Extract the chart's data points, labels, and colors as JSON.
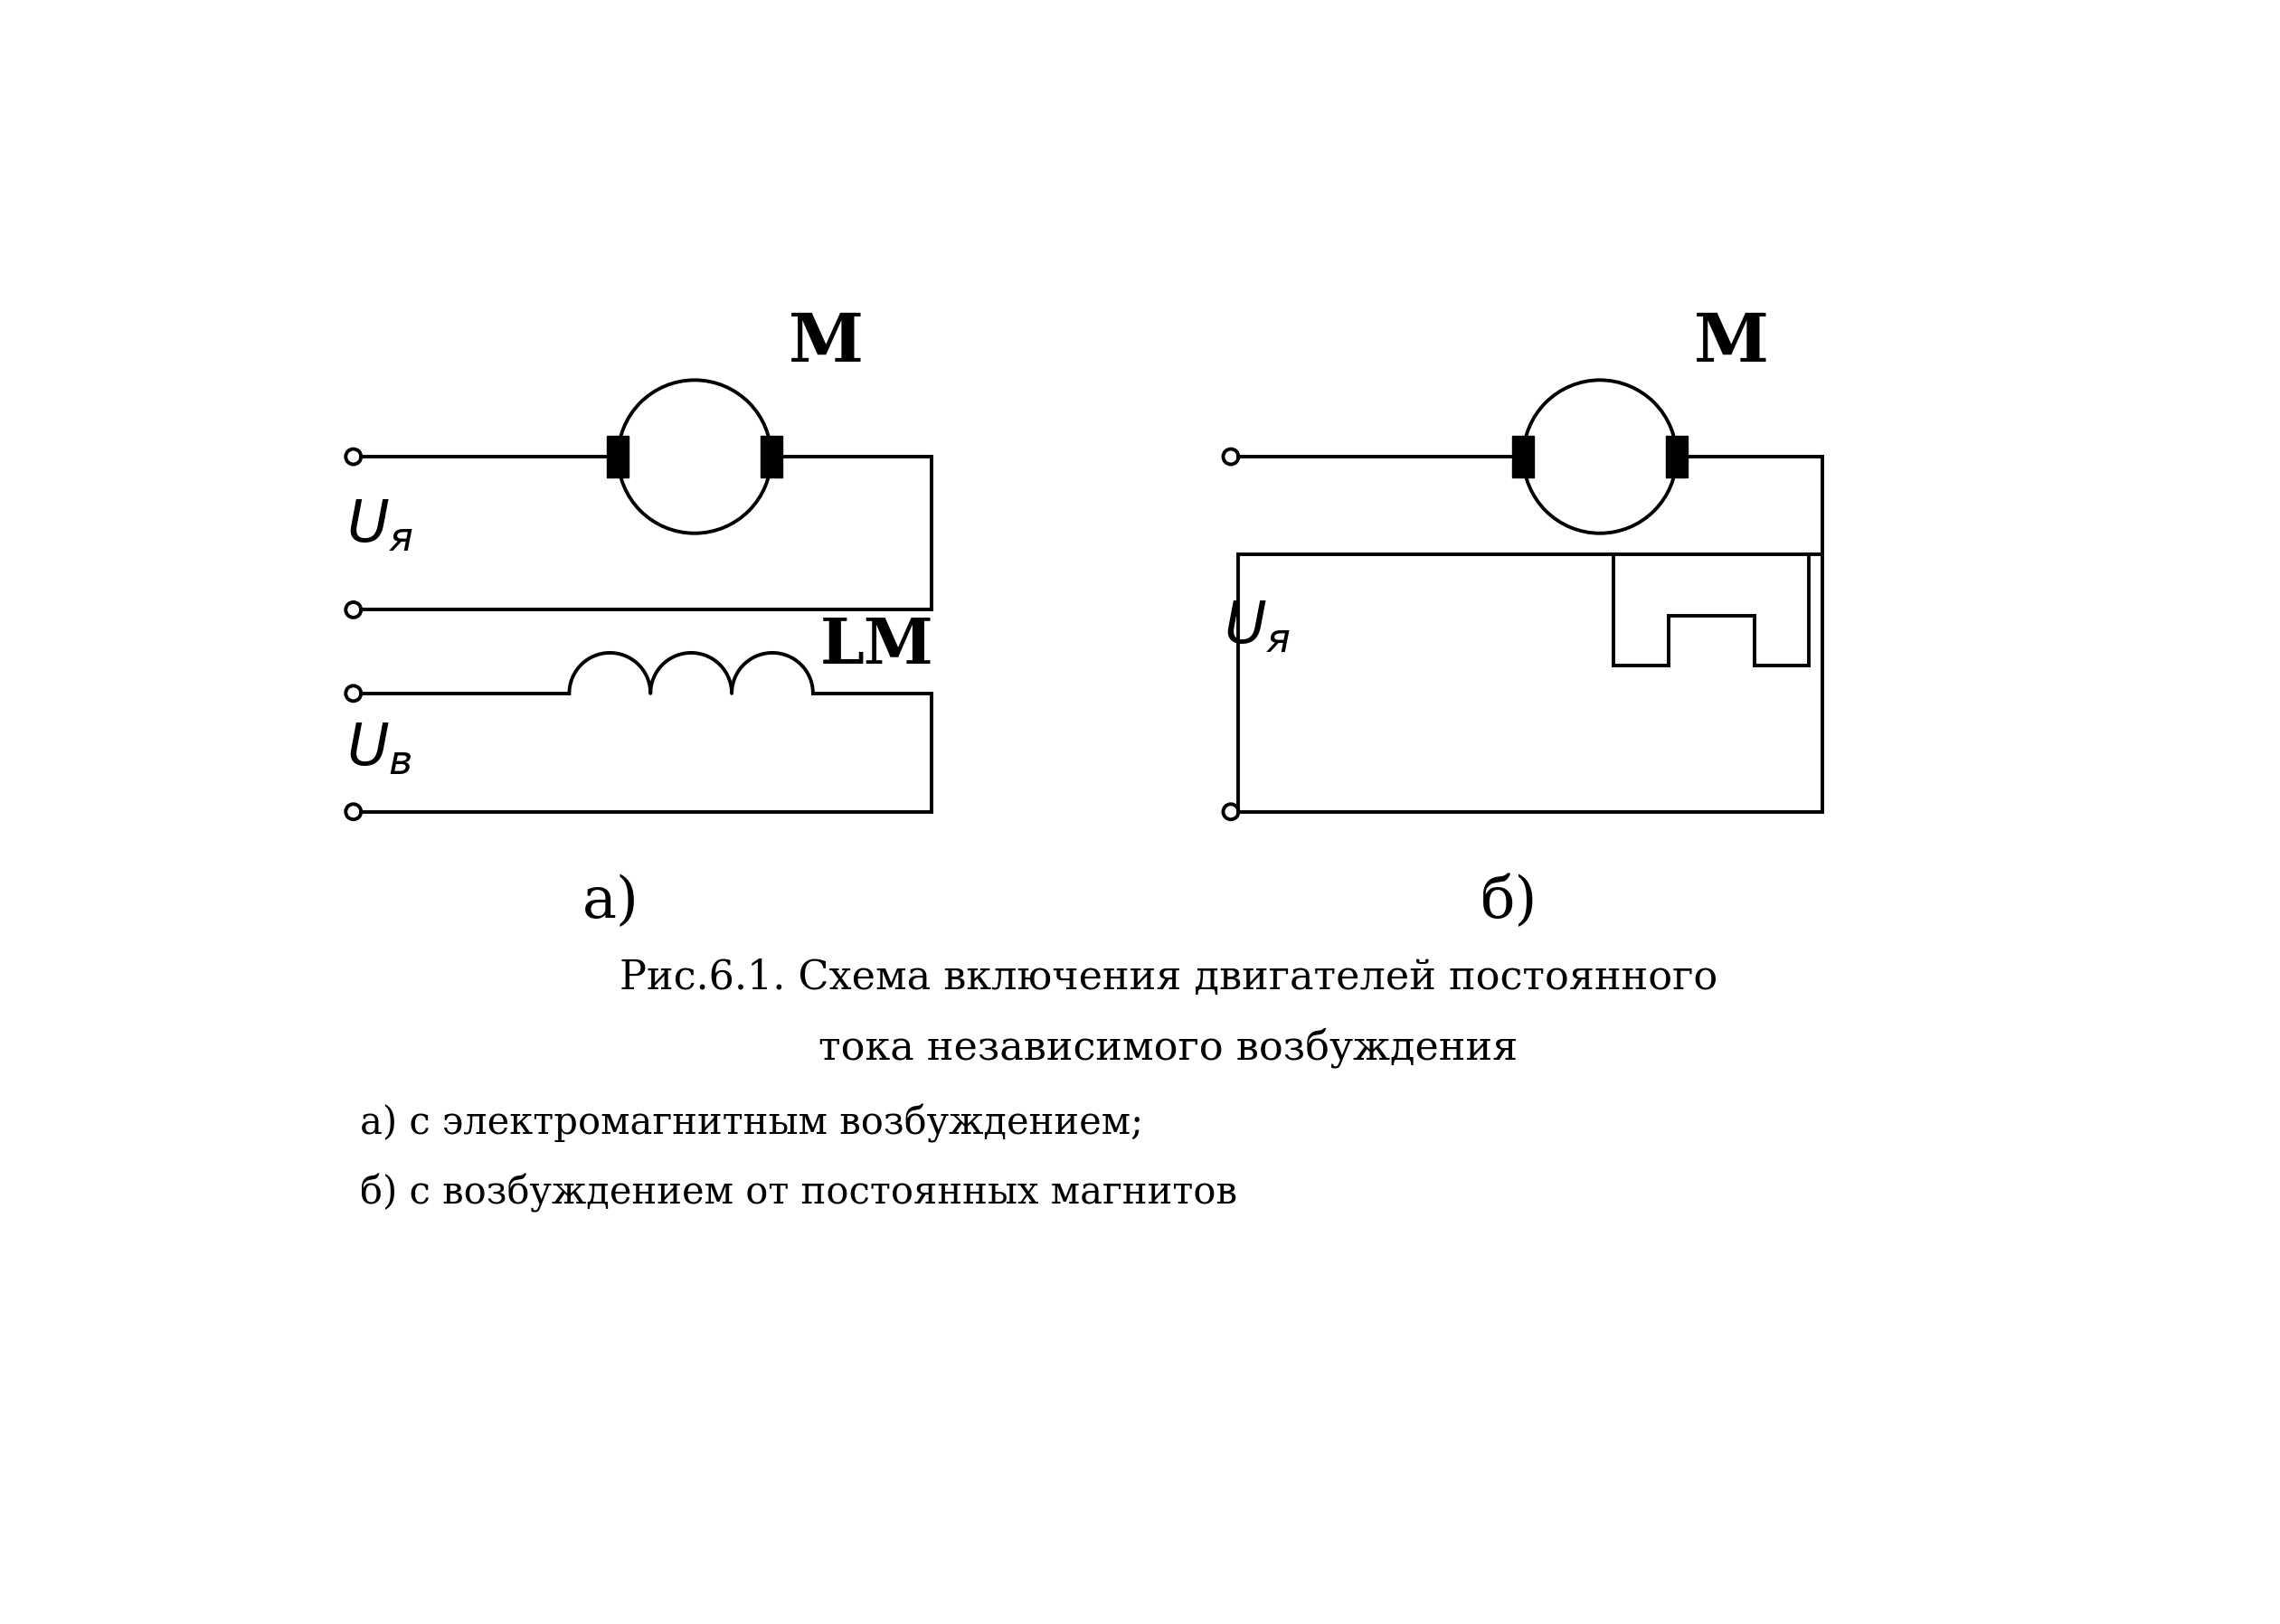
{
  "background_color": "#ffffff",
  "title_line1": "Рис.6.1. Схема включения двигателей постоянного",
  "title_line2": "тока независимого возбуждения",
  "subtitle_a": "а) с электромагнитным возбуждением;",
  "subtitle_b": "б) с возбуждением от постоянных магнитов",
  "label_a": "а)",
  "label_b": "б)",
  "label_M": "M",
  "label_LM": "LM",
  "label_fontsize": 46,
  "title_fontsize": 32,
  "sub_fontsize": 30
}
